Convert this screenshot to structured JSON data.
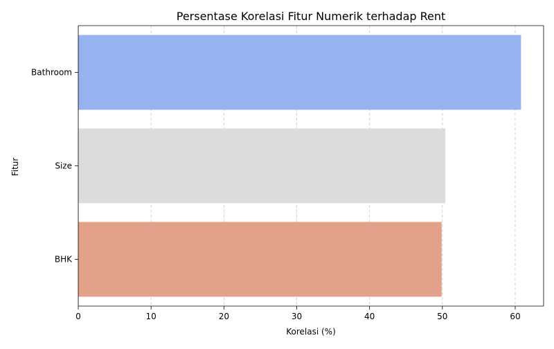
{
  "chart_data": {
    "type": "bar",
    "orientation": "horizontal",
    "title": "Persentase Korelasi Fitur Numerik terhadap Rent",
    "xlabel": "Korelasi (%)",
    "ylabel": "Fitur",
    "categories": [
      "Bathroom",
      "Size",
      "BHK"
    ],
    "values": [
      60.8,
      50.4,
      49.9
    ],
    "bar_colors": [
      "#97b2f1",
      "#dcdcdc",
      "#e4a18a"
    ],
    "xlim": [
      0,
      63.9
    ],
    "xticks": [
      0,
      10,
      20,
      30,
      40,
      50,
      60
    ],
    "grid": "x-dashed"
  }
}
